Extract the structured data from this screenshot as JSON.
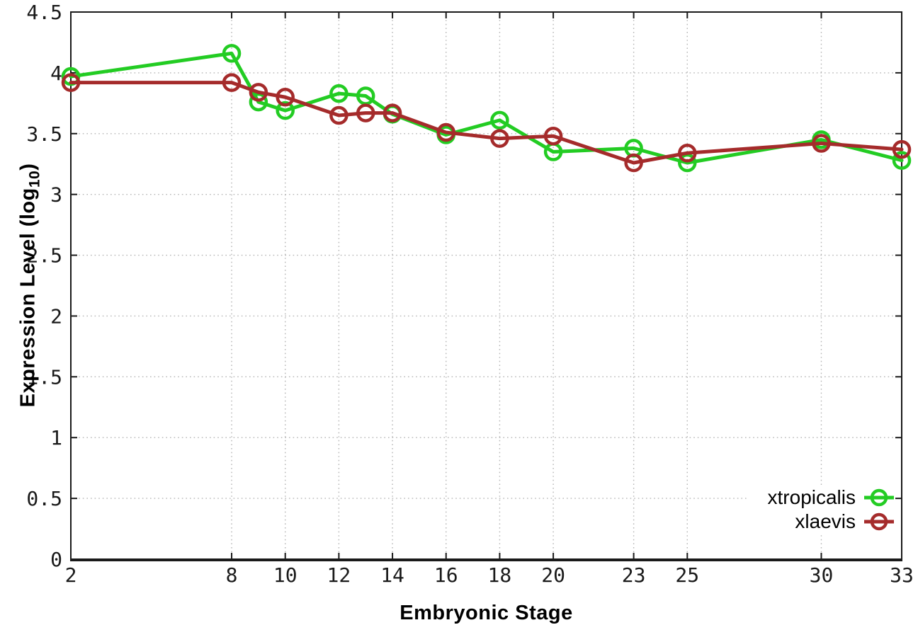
{
  "figure": {
    "background": "#ffffff",
    "border_color": "#1a1a1a",
    "grid_color": "#b5b5b5"
  },
  "chart_data": {
    "type": "line",
    "title": "",
    "xlabel": "Embryonic Stage",
    "ylabel": {
      "prefix": "Expression Level (log",
      "sub": "10",
      "suffix": ")"
    },
    "ylabel_full": "Expression Level (log10)",
    "xlim": [
      2,
      33
    ],
    "ylim": [
      0,
      4.5
    ],
    "x_ticks": [
      2,
      8,
      10,
      12,
      14,
      16,
      18,
      20,
      23,
      25,
      30,
      33
    ],
    "y_ticks": [
      0,
      0.5,
      1,
      1.5,
      2,
      2.5,
      3,
      3.5,
      4,
      4.5
    ],
    "grid": true,
    "x": [
      2,
      8,
      9,
      10,
      12,
      13,
      14,
      16,
      18,
      20,
      23,
      25,
      30,
      33
    ],
    "series": [
      {
        "name": "xtropicalis",
        "color": "#23cc23",
        "marker": "open-circle",
        "values": [
          3.97,
          4.16,
          3.76,
          3.69,
          3.83,
          3.81,
          3.66,
          3.49,
          3.61,
          3.35,
          3.38,
          3.26,
          3.45,
          3.28
        ]
      },
      {
        "name": "xlaevis",
        "color": "#a52b2b",
        "marker": "open-circle",
        "values": [
          3.92,
          3.92,
          3.84,
          3.8,
          3.65,
          3.67,
          3.67,
          3.51,
          3.46,
          3.48,
          3.26,
          3.34,
          3.42,
          3.37
        ]
      }
    ],
    "legend": {
      "position": "bottom-right",
      "entries": [
        "xtropicalis",
        "xlaevis"
      ]
    }
  }
}
